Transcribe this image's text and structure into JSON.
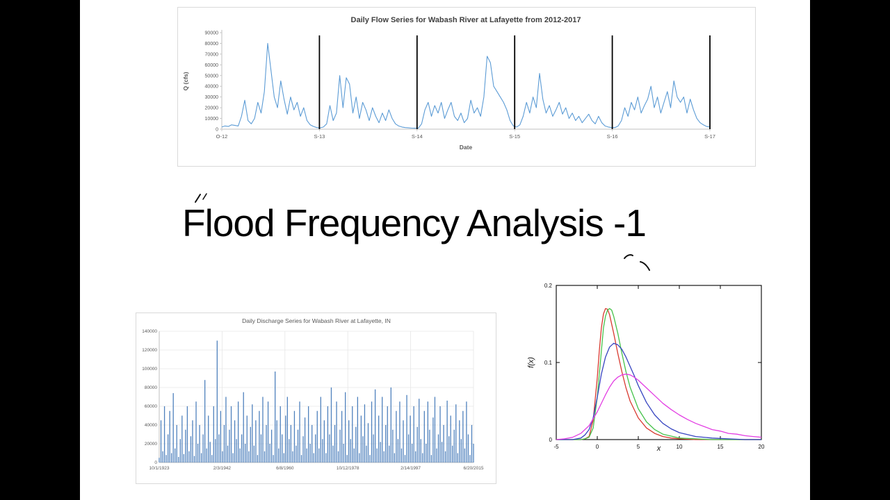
{
  "slide": {
    "title": "Flood Frequency Analysis -1"
  },
  "chart_data": [
    {
      "id": "daily-flow-series",
      "type": "line",
      "title": "Daily Flow Series for Wabash River at Lafayette from 2012-2017",
      "xlabel": "Date",
      "ylabel": "Q (cfs)",
      "x_ticks": [
        "O-12",
        "S-13",
        "S-14",
        "S-15",
        "S-16",
        "S-17"
      ],
      "y_ticks": [
        0,
        10000,
        20000,
        30000,
        40000,
        50000,
        60000,
        70000,
        80000,
        90000
      ],
      "ylim": [
        0,
        90000
      ],
      "color": "#5b9bd5",
      "separator_color": "#000000",
      "separators": [
        0.2,
        0.4,
        0.6,
        0.8,
        1.0
      ],
      "legend": "none",
      "grid": false,
      "values": [
        2000,
        3000,
        2500,
        4000,
        3500,
        3000,
        12000,
        27000,
        8000,
        5000,
        10000,
        25000,
        15000,
        35000,
        80000,
        55000,
        30000,
        20000,
        45000,
        28000,
        14000,
        30000,
        18000,
        25000,
        12000,
        20000,
        8000,
        4000,
        2500,
        1500,
        1200,
        2000,
        5000,
        22000,
        8000,
        15000,
        50000,
        20000,
        48000,
        42000,
        15000,
        30000,
        10000,
        25000,
        18000,
        8000,
        20000,
        12000,
        6000,
        15000,
        8000,
        18000,
        10000,
        5000,
        3000,
        2000,
        1500,
        1200,
        1000,
        900,
        1000,
        5000,
        18000,
        25000,
        12000,
        22000,
        15000,
        25000,
        10000,
        18000,
        25000,
        12000,
        8000,
        15000,
        6000,
        10000,
        27000,
        15000,
        20000,
        12000,
        30000,
        68000,
        62000,
        40000,
        35000,
        30000,
        25000,
        18000,
        8000,
        3000,
        2000,
        4000,
        12000,
        25000,
        15000,
        30000,
        20000,
        52000,
        28000,
        15000,
        22000,
        12000,
        18000,
        25000,
        14000,
        20000,
        10000,
        15000,
        8000,
        12000,
        6000,
        10000,
        14000,
        8000,
        5000,
        12000,
        6000,
        3000,
        2000,
        1500,
        1500,
        3000,
        8000,
        20000,
        12000,
        25000,
        18000,
        30000,
        15000,
        22000,
        28000,
        40000,
        20000,
        30000,
        15000,
        25000,
        35000,
        20000,
        45000,
        30000,
        25000,
        30000,
        15000,
        28000,
        18000,
        10000,
        6000,
        4000,
        2500,
        2000
      ]
    },
    {
      "id": "daily-discharge-series",
      "type": "bar",
      "title": "Daily Discharge Series for Wabash River at Lafayette, IN",
      "xlabel": "",
      "ylabel": "",
      "x_ticks": [
        "10/1/1923",
        "2/3/1942",
        "6/8/1960",
        "10/12/1978",
        "2/14/1997",
        "6/20/2015"
      ],
      "y_ticks": [
        0,
        20000,
        40000,
        60000,
        80000,
        100000,
        120000,
        140000
      ],
      "ylim": [
        0,
        140000
      ],
      "color": "#4f81bd",
      "grid": true,
      "legend": "none",
      "values": [
        5000,
        45000,
        12000,
        60000,
        8000,
        30000,
        55000,
        10000,
        74000,
        15000,
        40000,
        6000,
        25000,
        50000,
        9000,
        35000,
        60000,
        12000,
        28000,
        45000,
        7000,
        65000,
        20000,
        40000,
        10000,
        30000,
        88000,
        15000,
        50000,
        22000,
        8000,
        60000,
        25000,
        130000,
        30000,
        55000,
        12000,
        40000,
        70000,
        18000,
        35000,
        60000,
        10000,
        45000,
        25000,
        65000,
        15000,
        30000,
        75000,
        20000,
        50000,
        12000,
        38000,
        62000,
        18000,
        45000,
        8000,
        55000,
        30000,
        70000,
        12000,
        40000,
        65000,
        20000,
        35000,
        8000,
        97000,
        45000,
        15000,
        60000,
        30000,
        10000,
        50000,
        70000,
        25000,
        40000,
        12000,
        55000,
        18000,
        35000,
        65000,
        8000,
        28000,
        48000,
        15000,
        60000,
        20000,
        40000,
        10000,
        30000,
        55000,
        15000,
        70000,
        25000,
        45000,
        10000,
        60000,
        30000,
        80000,
        18000,
        40000,
        65000,
        12000,
        35000,
        55000,
        20000,
        75000,
        8000,
        45000,
        25000,
        60000,
        15000,
        38000,
        70000,
        10000,
        50000,
        28000,
        62000,
        18000,
        42000,
        8000,
        65000,
        30000,
        78000,
        15000,
        50000,
        22000,
        70000,
        12000,
        40000,
        60000,
        18000,
        80000,
        35000,
        10000,
        55000,
        25000,
        65000,
        15000,
        45000,
        8000,
        72000,
        30000,
        50000,
        20000,
        60000,
        12000,
        38000,
        68000,
        25000,
        10000,
        55000,
        20000,
        65000,
        35000,
        8000,
        48000,
        70000,
        15000,
        30000,
        60000,
        22000,
        40000,
        12000,
        66000,
        28000,
        50000,
        18000,
        35000,
        62000,
        10000,
        45000,
        25000,
        55000,
        15000,
        65000,
        30000,
        8000,
        40000,
        20000
      ]
    },
    {
      "id": "probability-density-curves",
      "type": "line",
      "title": "",
      "xlabel": "x",
      "ylabel": "f(x)",
      "xlim": [
        -5,
        20
      ],
      "ylim": [
        0,
        0.2
      ],
      "x_ticks": [
        -5,
        0,
        5,
        10,
        15,
        20
      ],
      "y_ticks": [
        0,
        0.1,
        0.2
      ],
      "grid": false,
      "legend": "none",
      "series": [
        {
          "name": "narrow-red-pdf",
          "color": "#d83a30",
          "points": [
            [
              -5,
              0
            ],
            [
              -2,
              0
            ],
            [
              -1.5,
              0.001
            ],
            [
              -1,
              0.004
            ],
            [
              -0.5,
              0.025
            ],
            [
              0,
              0.08
            ],
            [
              0.25,
              0.115
            ],
            [
              0.5,
              0.145
            ],
            [
              0.75,
              0.163
            ],
            [
              1,
              0.17
            ],
            [
              1.25,
              0.169
            ],
            [
              1.5,
              0.162
            ],
            [
              2,
              0.138
            ],
            [
              2.5,
              0.112
            ],
            [
              3,
              0.088
            ],
            [
              3.5,
              0.067
            ],
            [
              4,
              0.05
            ],
            [
              5,
              0.028
            ],
            [
              6,
              0.015
            ],
            [
              7,
              0.008
            ],
            [
              8,
              0.004
            ],
            [
              9,
              0.002
            ],
            [
              10,
              0.001
            ],
            [
              12,
              0
            ],
            [
              20,
              0
            ]
          ]
        },
        {
          "name": "green-pdf",
          "color": "#46c24b",
          "points": [
            [
              -5,
              0
            ],
            [
              -2,
              0
            ],
            [
              -1.5,
              0.001
            ],
            [
              -1,
              0.003
            ],
            [
              -0.5,
              0.015
            ],
            [
              0,
              0.055
            ],
            [
              0.5,
              0.115
            ],
            [
              0.75,
              0.145
            ],
            [
              1,
              0.16
            ],
            [
              1.25,
              0.168
            ],
            [
              1.5,
              0.17
            ],
            [
              1.75,
              0.168
            ],
            [
              2,
              0.16
            ],
            [
              2.5,
              0.138
            ],
            [
              3,
              0.112
            ],
            [
              3.5,
              0.088
            ],
            [
              4,
              0.068
            ],
            [
              5,
              0.04
            ],
            [
              6,
              0.023
            ],
            [
              7,
              0.013
            ],
            [
              8,
              0.007
            ],
            [
              10,
              0.002
            ],
            [
              12,
              0.001
            ],
            [
              14,
              0
            ],
            [
              20,
              0
            ]
          ]
        },
        {
          "name": "blue-pdf",
          "color": "#3644c0",
          "points": [
            [
              -5,
              0
            ],
            [
              -3,
              0
            ],
            [
              -2,
              0.002
            ],
            [
              -1.5,
              0.006
            ],
            [
              -1,
              0.013
            ],
            [
              -0.5,
              0.028
            ],
            [
              0,
              0.055
            ],
            [
              0.5,
              0.085
            ],
            [
              1,
              0.107
            ],
            [
              1.5,
              0.12
            ],
            [
              2,
              0.125
            ],
            [
              2.5,
              0.123
            ],
            [
              3,
              0.117
            ],
            [
              3.5,
              0.107
            ],
            [
              4,
              0.095
            ],
            [
              4.5,
              0.083
            ],
            [
              5,
              0.07
            ],
            [
              6,
              0.048
            ],
            [
              7,
              0.032
            ],
            [
              8,
              0.021
            ],
            [
              9,
              0.014
            ],
            [
              10,
              0.009
            ],
            [
              12,
              0.004
            ],
            [
              14,
              0.002
            ],
            [
              16,
              0.001
            ],
            [
              18,
              0
            ],
            [
              20,
              0
            ]
          ]
        },
        {
          "name": "magenta-pdf",
          "color": "#e33de3",
          "points": [
            [
              -5,
              0
            ],
            [
              -4,
              0.001
            ],
            [
              -3,
              0.003
            ],
            [
              -2,
              0.008
            ],
            [
              -1,
              0.018
            ],
            [
              0,
              0.036
            ],
            [
              1,
              0.058
            ],
            [
              1.5,
              0.068
            ],
            [
              2,
              0.076
            ],
            [
              2.5,
              0.081
            ],
            [
              3,
              0.084
            ],
            [
              3.5,
              0.085
            ],
            [
              4,
              0.084
            ],
            [
              4.5,
              0.081
            ],
            [
              5,
              0.077
            ],
            [
              6,
              0.067
            ],
            [
              7,
              0.057
            ],
            [
              8,
              0.047
            ],
            [
              9,
              0.039
            ],
            [
              10,
              0.032
            ],
            [
              11,
              0.026
            ],
            [
              12,
              0.021
            ],
            [
              13,
              0.017
            ],
            [
              14,
              0.013
            ],
            [
              15,
              0.011
            ],
            [
              16,
              0.008
            ],
            [
              17,
              0.007
            ],
            [
              18,
              0.005
            ],
            [
              19,
              0.004
            ],
            [
              20,
              0.003
            ]
          ]
        }
      ]
    }
  ]
}
